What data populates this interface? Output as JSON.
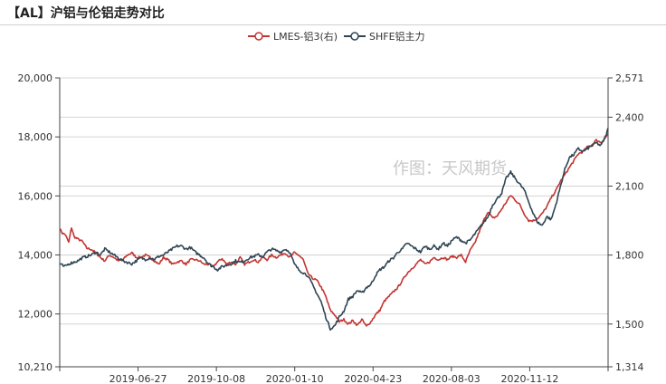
{
  "title": "【AL】沪铝与伦铝走势对比",
  "watermark": "作图：天风期货",
  "colors": {
    "lme": "#c23531",
    "shfe": "#2f4554",
    "grid": "#d4d4d4",
    "axis": "#444444"
  },
  "chart_data": {
    "type": "line",
    "x_labels": [
      "2019-06-27",
      "2019-10-08",
      "2020-01-10",
      "2020-04-23",
      "2020-08-03",
      "2020-11-12"
    ],
    "y_left": {
      "min": 10210,
      "max": 20000,
      "ticks": [
        "20,000",
        "18,000",
        "16,000",
        "14,000",
        "12,000",
        "10,210"
      ]
    },
    "y_right": {
      "min": 1314,
      "max": 2571,
      "ticks": [
        "2,571",
        "2,400",
        "2,100",
        "1,800",
        "1,500",
        "1,314"
      ]
    },
    "legend": [
      {
        "name": "LMES-铝3(右)"
      },
      {
        "name": "SHFE铝主力"
      }
    ],
    "series": [
      {
        "name": "LMES-铝3(右)",
        "axis": "right",
        "keypoints": [
          [
            0,
            1915
          ],
          [
            3,
            1895
          ],
          [
            6,
            1890
          ],
          [
            10,
            1855
          ],
          [
            13,
            1920
          ],
          [
            16,
            1880
          ],
          [
            20,
            1870
          ],
          [
            25,
            1860
          ],
          [
            30,
            1830
          ],
          [
            35,
            1825
          ],
          [
            40,
            1810
          ],
          [
            45,
            1790
          ],
          [
            50,
            1775
          ],
          [
            55,
            1800
          ],
          [
            60,
            1790
          ],
          [
            65,
            1775
          ],
          [
            70,
            1780
          ],
          [
            75,
            1800
          ],
          [
            80,
            1810
          ],
          [
            85,
            1790
          ],
          [
            90,
            1790
          ],
          [
            95,
            1800
          ],
          [
            100,
            1790
          ],
          [
            105,
            1775
          ],
          [
            110,
            1760
          ],
          [
            115,
            1790
          ],
          [
            120,
            1780
          ],
          [
            125,
            1760
          ],
          [
            130,
            1770
          ],
          [
            135,
            1775
          ],
          [
            140,
            1760
          ],
          [
            145,
            1780
          ],
          [
            150,
            1780
          ],
          [
            155,
            1775
          ],
          [
            160,
            1760
          ],
          [
            165,
            1760
          ],
          [
            170,
            1750
          ],
          [
            175,
            1770
          ],
          [
            180,
            1785
          ],
          [
            185,
            1760
          ],
          [
            190,
            1770
          ],
          [
            195,
            1760
          ],
          [
            200,
            1790
          ],
          [
            205,
            1760
          ],
          [
            210,
            1770
          ],
          [
            215,
            1780
          ],
          [
            220,
            1770
          ],
          [
            225,
            1790
          ],
          [
            230,
            1780
          ],
          [
            235,
            1800
          ],
          [
            240,
            1790
          ],
          [
            245,
            1800
          ],
          [
            250,
            1810
          ],
          [
            255,
            1790
          ],
          [
            260,
            1810
          ],
          [
            265,
            1800
          ],
          [
            270,
            1780
          ],
          [
            275,
            1720
          ],
          [
            280,
            1700
          ],
          [
            285,
            1690
          ],
          [
            290,
            1660
          ],
          [
            295,
            1620
          ],
          [
            300,
            1560
          ],
          [
            305,
            1540
          ],
          [
            310,
            1510
          ],
          [
            315,
            1520
          ],
          [
            320,
            1500
          ],
          [
            325,
            1515
          ],
          [
            330,
            1495
          ],
          [
            335,
            1520
          ],
          [
            340,
            1490
          ],
          [
            345,
            1510
          ],
          [
            350,
            1540
          ],
          [
            355,
            1560
          ],
          [
            360,
            1600
          ],
          [
            365,
            1620
          ],
          [
            370,
            1640
          ],
          [
            375,
            1660
          ],
          [
            380,
            1690
          ],
          [
            385,
            1720
          ],
          [
            390,
            1740
          ],
          [
            395,
            1760
          ],
          [
            400,
            1780
          ],
          [
            405,
            1760
          ],
          [
            410,
            1770
          ],
          [
            415,
            1790
          ],
          [
            420,
            1780
          ],
          [
            425,
            1790
          ],
          [
            430,
            1780
          ],
          [
            435,
            1795
          ],
          [
            440,
            1790
          ],
          [
            445,
            1800
          ],
          [
            450,
            1770
          ],
          [
            455,
            1820
          ],
          [
            460,
            1850
          ],
          [
            465,
            1900
          ],
          [
            470,
            1950
          ],
          [
            475,
            1990
          ],
          [
            480,
            1960
          ],
          [
            485,
            1970
          ],
          [
            490,
            2000
          ],
          [
            495,
            2030
          ],
          [
            500,
            2060
          ],
          [
            505,
            2040
          ],
          [
            510,
            2020
          ],
          [
            515,
            1980
          ],
          [
            520,
            1950
          ],
          [
            525,
            1950
          ],
          [
            530,
            1960
          ],
          [
            535,
            1980
          ],
          [
            540,
            2010
          ],
          [
            545,
            2050
          ],
          [
            550,
            2080
          ],
          [
            555,
            2120
          ],
          [
            560,
            2150
          ],
          [
            565,
            2180
          ],
          [
            570,
            2210
          ],
          [
            575,
            2240
          ],
          [
            580,
            2250
          ],
          [
            585,
            2270
          ],
          [
            590,
            2280
          ],
          [
            595,
            2300
          ],
          [
            600,
            2290
          ],
          [
            605,
            2310
          ],
          [
            608,
            2330
          ]
        ]
      },
      {
        "name": "SHFE铝主力",
        "axis": "left",
        "keypoints": [
          [
            0,
            13700
          ],
          [
            5,
            13600
          ],
          [
            10,
            13700
          ],
          [
            15,
            13750
          ],
          [
            20,
            13800
          ],
          [
            25,
            13900
          ],
          [
            30,
            13950
          ],
          [
            35,
            14000
          ],
          [
            40,
            14100
          ],
          [
            45,
            14000
          ],
          [
            50,
            14200
          ],
          [
            55,
            14100
          ],
          [
            60,
            14000
          ],
          [
            65,
            13900
          ],
          [
            70,
            13800
          ],
          [
            75,
            13750
          ],
          [
            80,
            13700
          ],
          [
            85,
            13800
          ],
          [
            90,
            13900
          ],
          [
            95,
            13850
          ],
          [
            100,
            13900
          ],
          [
            105,
            13850
          ],
          [
            110,
            13950
          ],
          [
            115,
            14000
          ],
          [
            120,
            14100
          ],
          [
            125,
            14200
          ],
          [
            130,
            14300
          ],
          [
            135,
            14300
          ],
          [
            140,
            14200
          ],
          [
            145,
            14250
          ],
          [
            150,
            14100
          ],
          [
            155,
            14000
          ],
          [
            160,
            13900
          ],
          [
            165,
            13700
          ],
          [
            170,
            13600
          ],
          [
            175,
            13500
          ],
          [
            180,
            13600
          ],
          [
            185,
            13650
          ],
          [
            190,
            13700
          ],
          [
            195,
            13800
          ],
          [
            200,
            13750
          ],
          [
            205,
            13800
          ],
          [
            210,
            13900
          ],
          [
            215,
            13950
          ],
          [
            220,
            14000
          ],
          [
            225,
            13950
          ],
          [
            230,
            14100
          ],
          [
            235,
            14200
          ],
          [
            240,
            14150
          ],
          [
            245,
            14100
          ],
          [
            250,
            14200
          ],
          [
            255,
            14100
          ],
          [
            260,
            13700
          ],
          [
            265,
            13500
          ],
          [
            270,
            13400
          ],
          [
            275,
            13300
          ],
          [
            280,
            13000
          ],
          [
            285,
            12700
          ],
          [
            290,
            12400
          ],
          [
            295,
            11900
          ],
          [
            300,
            11500
          ],
          [
            305,
            11600
          ],
          [
            310,
            11900
          ],
          [
            315,
            12100
          ],
          [
            320,
            12500
          ],
          [
            325,
            12600
          ],
          [
            330,
            12800
          ],
          [
            335,
            12700
          ],
          [
            340,
            12900
          ],
          [
            345,
            13000
          ],
          [
            350,
            13300
          ],
          [
            355,
            13500
          ],
          [
            360,
            13600
          ],
          [
            365,
            13800
          ],
          [
            370,
            13900
          ],
          [
            375,
            14100
          ],
          [
            380,
            14200
          ],
          [
            385,
            14400
          ],
          [
            390,
            14300
          ],
          [
            395,
            14200
          ],
          [
            400,
            14100
          ],
          [
            405,
            14300
          ],
          [
            410,
            14200
          ],
          [
            415,
            14300
          ],
          [
            420,
            14200
          ],
          [
            425,
            14400
          ],
          [
            430,
            14300
          ],
          [
            435,
            14500
          ],
          [
            440,
            14600
          ],
          [
            445,
            14500
          ],
          [
            450,
            14400
          ],
          [
            455,
            14500
          ],
          [
            460,
            14700
          ],
          [
            465,
            14900
          ],
          [
            470,
            15100
          ],
          [
            475,
            15300
          ],
          [
            480,
            15700
          ],
          [
            485,
            15900
          ],
          [
            490,
            16100
          ],
          [
            495,
            16600
          ],
          [
            500,
            16800
          ],
          [
            505,
            16600
          ],
          [
            510,
            16400
          ],
          [
            515,
            16200
          ],
          [
            520,
            15800
          ],
          [
            525,
            15400
          ],
          [
            530,
            15100
          ],
          [
            535,
            15000
          ],
          [
            540,
            15300
          ],
          [
            545,
            15200
          ],
          [
            550,
            15700
          ],
          [
            555,
            16300
          ],
          [
            560,
            16900
          ],
          [
            565,
            17300
          ],
          [
            570,
            17400
          ],
          [
            575,
            17600
          ],
          [
            580,
            17500
          ],
          [
            585,
            17600
          ],
          [
            590,
            17700
          ],
          [
            595,
            17800
          ],
          [
            600,
            17700
          ],
          [
            605,
            18000
          ],
          [
            608,
            18300
          ]
        ]
      }
    ]
  }
}
